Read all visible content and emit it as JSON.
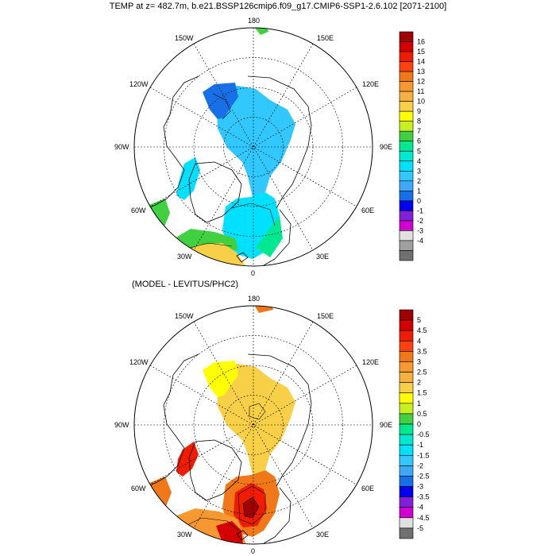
{
  "title": "TEMP at z= 482.7m, b.e21.BSSP126cmip6.f09_g17.CMIP6-SSP1-2.6.102 [2071-2100]",
  "bottom_title": "(MODEL - LEVITUS/PHC2)",
  "longitude_labels": [
    "180",
    "150W",
    "150E",
    "120W",
    "120E",
    "90W",
    "90E",
    "60W",
    "60E",
    "30W",
    "30E",
    "0"
  ],
  "top_colorbar": {
    "labels": [
      "16",
      "15",
      "14",
      "13",
      "12",
      "11",
      "10",
      "9",
      "8",
      "7",
      "6",
      "5",
      "4",
      "3",
      "2",
      "1",
      "0",
      "-1",
      "-2",
      "-3",
      "-4"
    ],
    "colors": [
      "#a00000",
      "#d40000",
      "#f01c00",
      "#ff4010",
      "#f07818",
      "#f89830",
      "#f8b040",
      "#f8d048",
      "#ffff00",
      "#c8f020",
      "#40d040",
      "#00e890",
      "#00e8d0",
      "#00e0ff",
      "#30c8ff",
      "#40a8f8",
      "#1870e8",
      "#0000f0",
      "#8020d8",
      "#d000d0",
      "#e0e0e0",
      "#a0a0a0",
      "#707070"
    ]
  },
  "bottom_colorbar": {
    "labels": [
      "5",
      "4.5",
      "4",
      "3.5",
      "3",
      "2.5",
      "2",
      "1.5",
      "1",
      "0.5",
      "0",
      "-0.5",
      "-1",
      "-1.5",
      "-2",
      "-2.5",
      "-3",
      "-3.5",
      "-4",
      "-4.5",
      "-5"
    ],
    "colors": [
      "#a00000",
      "#d40000",
      "#f01c00",
      "#ff4010",
      "#f07818",
      "#f89830",
      "#f8b040",
      "#f8d048",
      "#ffff00",
      "#c8f020",
      "#40d040",
      "#00e890",
      "#00e8d0",
      "#00e0ff",
      "#30c8ff",
      "#40a8f8",
      "#1870e8",
      "#0000f0",
      "#8020d8",
      "#d000d0",
      "#e0e0e0",
      "#707070"
    ]
  }
}
